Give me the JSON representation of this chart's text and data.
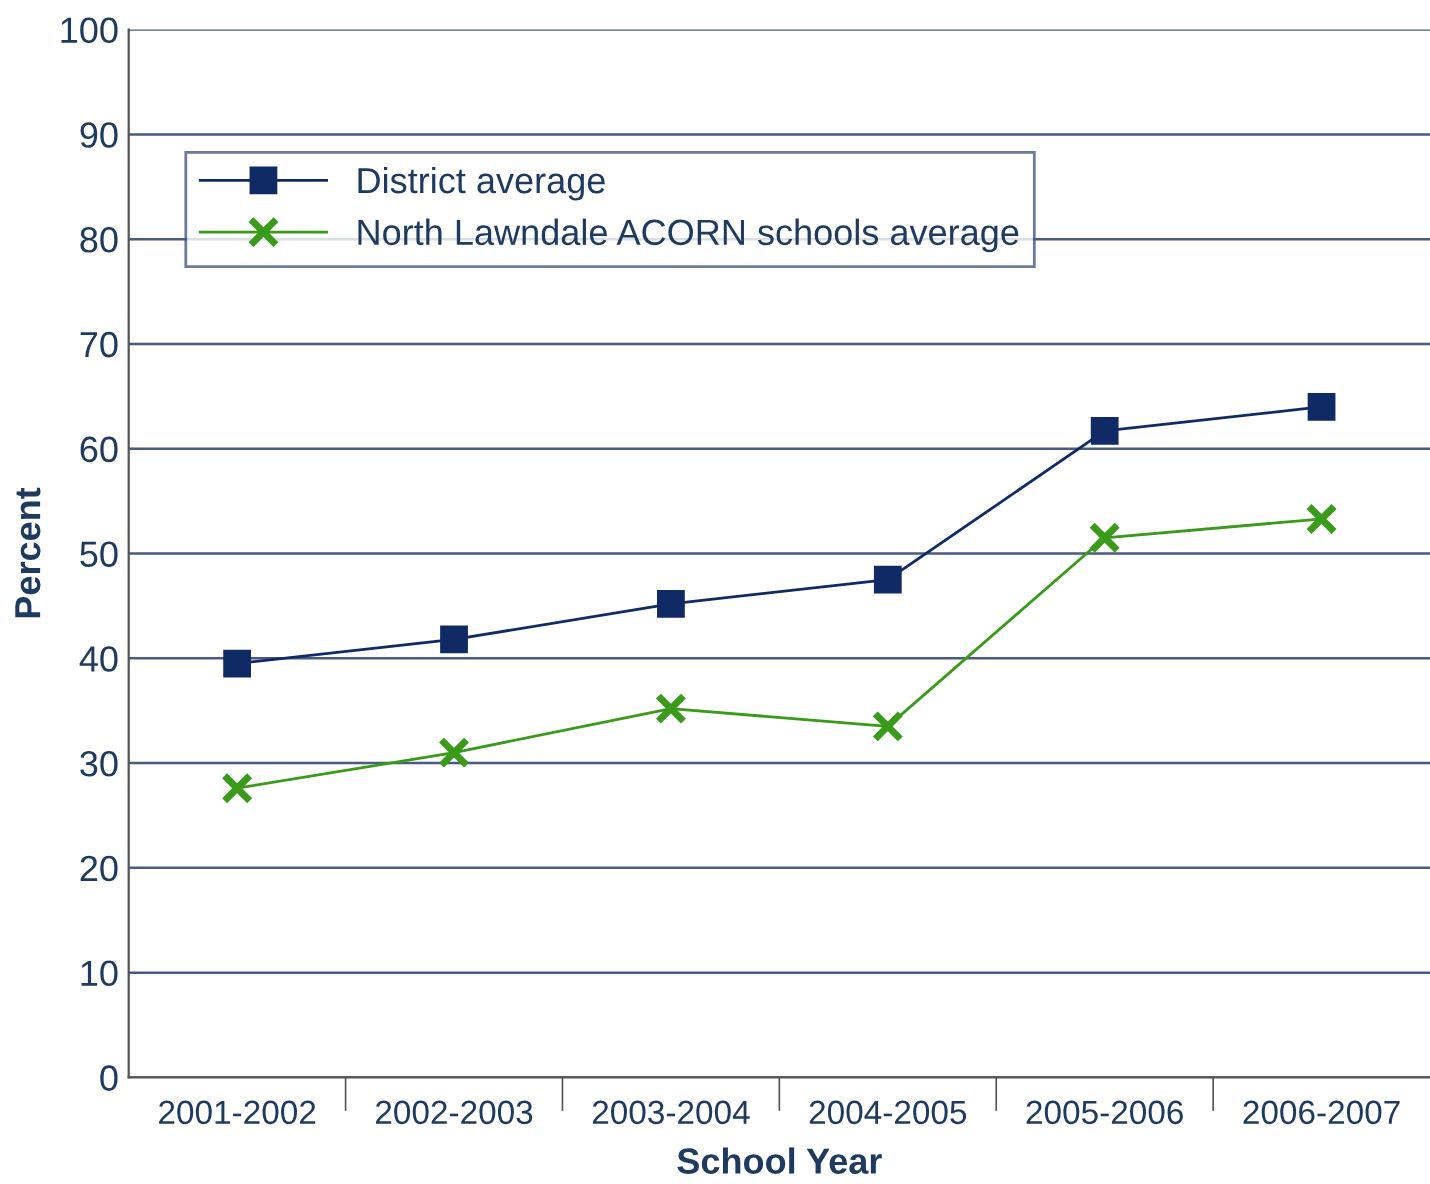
{
  "chart_data": {
    "type": "line",
    "xlabel": "School Year",
    "ylabel": "Percent",
    "categories": [
      "2001-2002",
      "2002-2003",
      "2003-2004",
      "2004-2005",
      "2005-2006",
      "2006-2007"
    ],
    "series": [
      {
        "name": "District average",
        "color": "#102a66",
        "marker": "square",
        "values": [
          39.5,
          41.8,
          45.2,
          47.5,
          61.7,
          64.0
        ]
      },
      {
        "name": "North Lawndale ACORN schools average",
        "color": "#3a9a1a",
        "marker": "cross",
        "values": [
          27.6,
          31.0,
          35.2,
          33.5,
          51.5,
          53.3
        ]
      }
    ],
    "ylim": [
      0,
      100
    ],
    "yticks": [
      0,
      10,
      20,
      30,
      40,
      50,
      60,
      70,
      80,
      90,
      100
    ],
    "grid": "y",
    "legend": "top left",
    "line_style": "solid"
  }
}
